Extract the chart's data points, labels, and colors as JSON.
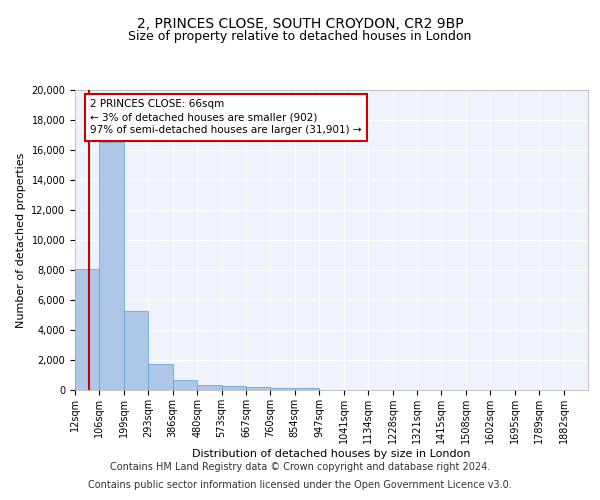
{
  "title1": "2, PRINCES CLOSE, SOUTH CROYDON, CR2 9BP",
  "title2": "Size of property relative to detached houses in London",
  "xlabel": "Distribution of detached houses by size in London",
  "ylabel": "Number of detached properties",
  "bin_labels": [
    "12sqm",
    "106sqm",
    "199sqm",
    "293sqm",
    "386sqm",
    "480sqm",
    "573sqm",
    "667sqm",
    "760sqm",
    "854sqm",
    "947sqm",
    "1041sqm",
    "1134sqm",
    "1228sqm",
    "1321sqm",
    "1415sqm",
    "1508sqm",
    "1602sqm",
    "1695sqm",
    "1789sqm",
    "1882sqm"
  ],
  "bar_values": [
    8100,
    16500,
    5300,
    1750,
    700,
    350,
    260,
    200,
    160,
    110,
    0,
    0,
    0,
    0,
    0,
    0,
    0,
    0,
    0,
    0
  ],
  "bar_color": "#aec6e8",
  "bar_edge_color": "#5a9fd4",
  "vline_x": 0.58,
  "annotation_text": "2 PRINCES CLOSE: 66sqm\n← 3% of detached houses are smaller (902)\n97% of semi-detached houses are larger (31,901) →",
  "annotation_box_color": "#ffffff",
  "annotation_box_edge_color": "#cc0000",
  "vline_color": "#cc0000",
  "ylim": [
    0,
    20000
  ],
  "yticks": [
    0,
    2000,
    4000,
    6000,
    8000,
    10000,
    12000,
    14000,
    16000,
    18000,
    20000
  ],
  "background_color": "#eef2fb",
  "footer1": "Contains HM Land Registry data © Crown copyright and database right 2024.",
  "footer2": "Contains public sector information licensed under the Open Government Licence v3.0.",
  "title1_fontsize": 10,
  "title2_fontsize": 9,
  "label_fontsize": 8,
  "tick_fontsize": 7,
  "footer_fontsize": 7
}
